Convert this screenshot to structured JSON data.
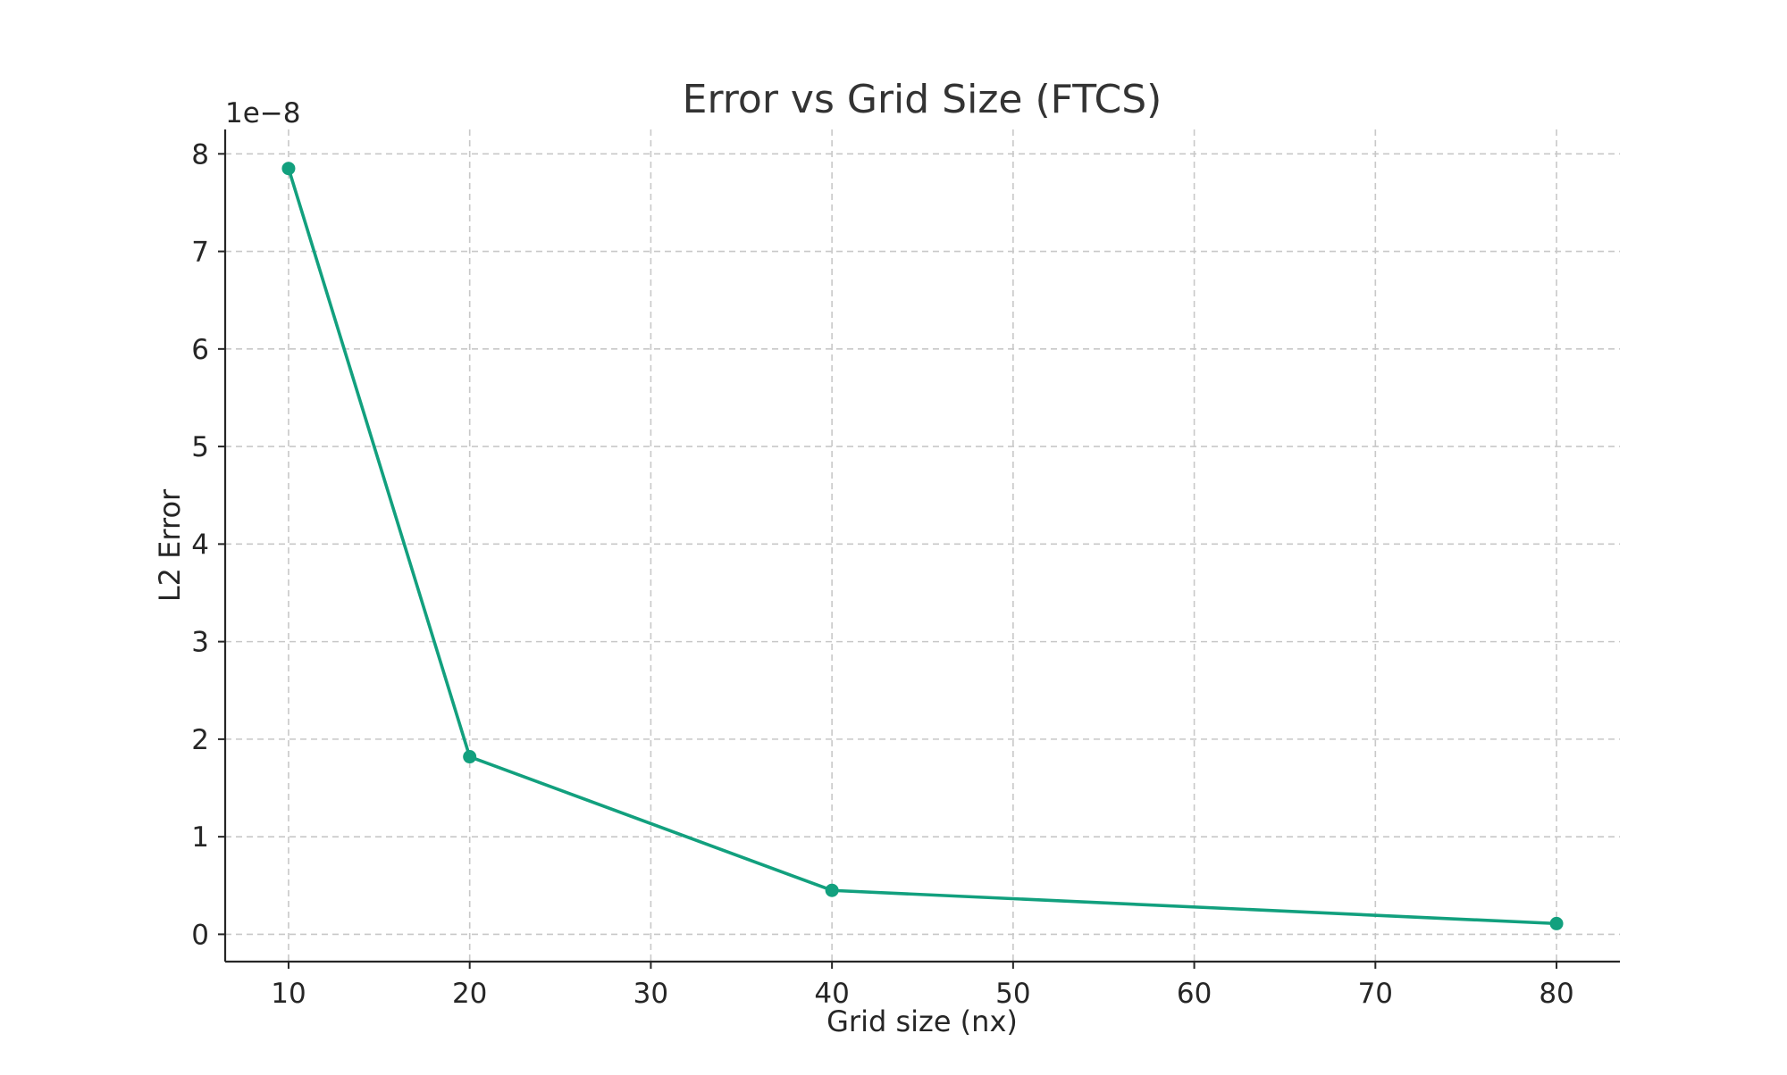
{
  "chart_data": {
    "type": "line",
    "title": "Error vs Grid Size (FTCS)",
    "xlabel": "Grid size (nx)",
    "ylabel": "L2 Error",
    "y_offset_label": "1e−8",
    "x": [
      10,
      20,
      40,
      80
    ],
    "series": [
      {
        "values": [
          7.85,
          1.82,
          0.45,
          0.11
        ],
        "color": "#12a07e",
        "marker": "circle"
      }
    ],
    "xlim": [
      6.5,
      83.5
    ],
    "ylim": [
      -0.28,
      8.25
    ],
    "xticks": [
      10,
      20,
      30,
      40,
      50,
      60,
      70,
      80
    ],
    "xtick_labels": [
      "10",
      "20",
      "30",
      "40",
      "50",
      "60",
      "70",
      "80"
    ],
    "yticks": [
      0,
      1,
      2,
      3,
      4,
      5,
      6,
      7,
      8
    ],
    "ytick_labels": [
      "0",
      "1",
      "2",
      "3",
      "4",
      "5",
      "6",
      "7",
      "8"
    ],
    "grid": true,
    "legend": "none"
  }
}
